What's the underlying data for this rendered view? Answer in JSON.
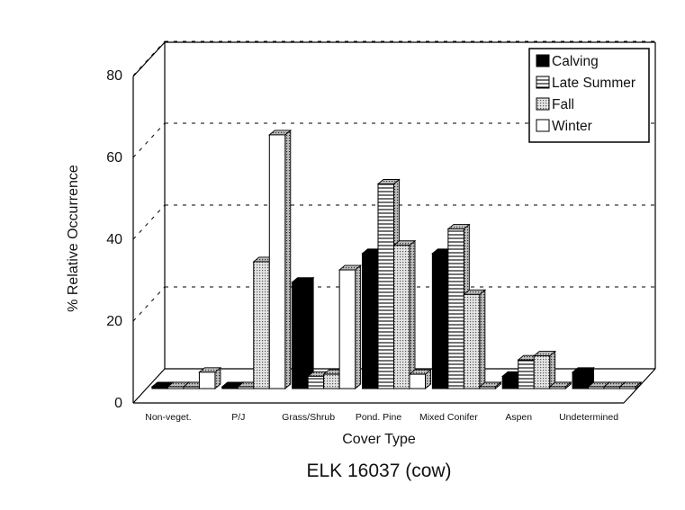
{
  "chart_data": {
    "type": "bar",
    "title": "ELK 16037 (cow)",
    "xlabel": "Cover Type",
    "ylabel": "% Relative Occurrence",
    "ylim": [
      0,
      80
    ],
    "yticks": [
      0,
      20,
      40,
      60,
      80
    ],
    "grid": true,
    "legend_position": "top-right",
    "categories": [
      "Non-veget.",
      "P/J",
      "Grass/Shrub",
      "Pond. Pine",
      "Mixed Conifer",
      "Aspen",
      "Undetermined"
    ],
    "series": [
      {
        "name": "Calving",
        "pattern": "solid",
        "color": "#000000",
        "values": [
          0.3,
          0.2,
          26,
          33,
          33,
          3,
          4
        ]
      },
      {
        "name": "Late Summer",
        "pattern": "hstripe",
        "color": "#ffffff",
        "values": [
          0.3,
          0.2,
          3,
          50,
          39,
          7,
          0.2
        ]
      },
      {
        "name": "Fall",
        "pattern": "dots",
        "color": "#cccccc",
        "values": [
          0.3,
          31,
          3.5,
          35,
          23,
          8,
          0.2
        ]
      },
      {
        "name": "Winter",
        "pattern": "none",
        "color": "#ffffff",
        "values": [
          4,
          62,
          29,
          3.5,
          0.2,
          0.2,
          0.2
        ]
      }
    ]
  }
}
